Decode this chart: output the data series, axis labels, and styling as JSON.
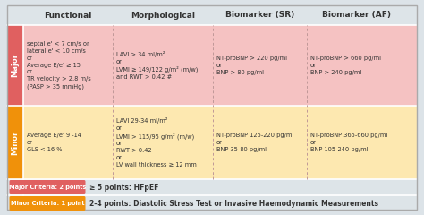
{
  "bg_color": "#dce3e8",
  "table_bg": "#dce3e8",
  "major_row_bg": "#f5c2c2",
  "minor_row_bg": "#fde8b0",
  "major_label_bg": "#e06060",
  "minor_label_bg": "#f0910a",
  "major_criteria_bg": "#e06060",
  "minor_criteria_bg": "#f0910a",
  "dashed_color": "#c09898",
  "header_font_size": 6.5,
  "cell_font_size": 4.8,
  "label_font_size": 6.0,
  "footer_font_size": 5.5,
  "crit_font_size": 4.8,
  "headers": [
    "Functional",
    "Morphological",
    "Biomarker (SR)",
    "Biomarker (AF)"
  ],
  "major_cells": [
    "septal e' < 7 cm/s or\nlateral e' < 10 cm/s\nor\nAverage E/e' ≥ 15\nor\nTR velocity > 2.8 m/s\n(PASP > 35 mmHg)",
    "LAVI > 34 ml/m²\nor\nLVMI ≥ 149/122 g/m² (m/w)\nand RWT > 0.42 #",
    "NT-proBNP > 220 pg/ml\nor\nBNP > 80 pg/ml",
    "NT-proBNP > 660 pg/ml\nor\nBNP > 240 pg/ml"
  ],
  "minor_cells": [
    "Average E/e' 9 -14\nor\nGLS < 16 %",
    "LAVI 29-34 ml/m²\nor\nLVMI > 115/95 g/m² (m/w)\nor\nRWT > 0.42\nor\nLV wall thickness ≥ 12 mm",
    "NT-proBNP 125-220 pg/ml\nor\nBNP 35-80 pg/ml",
    "NT-proBNP 365-660 pg/ml\nor\nBNP 105-240 pg/ml"
  ],
  "major_criteria_label": "Major Criteria: 2 points",
  "minor_criteria_label": "Minor Criteria: 1 point",
  "major_footer": "≥ 5 points: HFpEF",
  "minor_footer": "2-4 points: Diastolic Stress Test or Invasive Haemodynamic Measurements"
}
